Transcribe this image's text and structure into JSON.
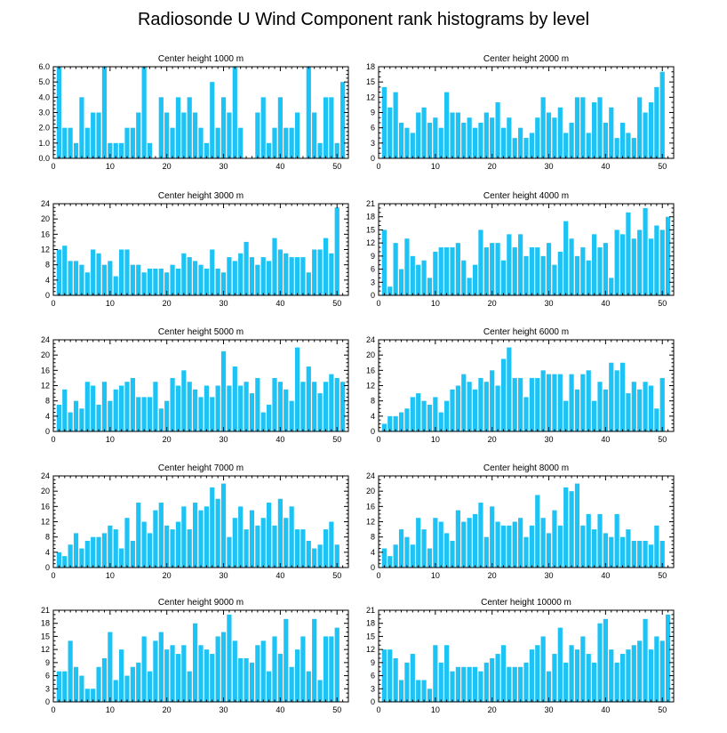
{
  "figure_title": "Radiosonde U Wind Component rank histograms by level",
  "colors": {
    "bar": "#1ec3f5",
    "frame": "#000000",
    "background": "#ffffff"
  },
  "chart_data": [
    {
      "type": "bar",
      "title": "Center height 1000 m",
      "xlim": [
        0,
        52
      ],
      "ylim": [
        0,
        6
      ],
      "xticks": [
        0,
        10,
        20,
        30,
        40,
        50
      ],
      "yticks": [
        0,
        1,
        2,
        3,
        4,
        5,
        6
      ],
      "ytick_labels": [
        "0.0",
        "1.0",
        "2.0",
        "3.0",
        "4.0",
        "5.0",
        "6.0"
      ],
      "values": [
        6,
        2,
        2,
        1,
        4,
        2,
        3,
        3,
        6,
        1,
        1,
        1,
        2,
        2,
        3,
        6,
        1,
        0,
        4,
        3,
        2,
        4,
        3,
        4,
        3,
        2,
        1,
        5,
        2,
        4,
        3,
        6,
        2,
        0,
        0,
        3,
        4,
        1,
        2,
        4,
        2,
        2,
        3,
        0,
        6,
        3,
        1,
        4,
        4,
        1,
        5
      ]
    },
    {
      "type": "bar",
      "title": "Center height 2000 m",
      "xlim": [
        0,
        52
      ],
      "ylim": [
        0,
        18
      ],
      "xticks": [
        0,
        10,
        20,
        30,
        40,
        50
      ],
      "yticks": [
        0,
        3,
        6,
        9,
        12,
        15,
        18
      ],
      "ytick_labels": [
        "0",
        "3",
        "6",
        "9",
        "12",
        "15",
        "18"
      ],
      "values": [
        14,
        10,
        13,
        7,
        6,
        5,
        9,
        10,
        7,
        8,
        6,
        13,
        9,
        9,
        7,
        8,
        6,
        7,
        9,
        8,
        11,
        6,
        8,
        4,
        6,
        4,
        5,
        8,
        12,
        9,
        8,
        10,
        5,
        7,
        12,
        12,
        5,
        11,
        12,
        7,
        10,
        4,
        7,
        5,
        4,
        12,
        9,
        11,
        14,
        17
      ]
    },
    {
      "type": "bar",
      "title": "Center height 3000 m",
      "xlim": [
        0,
        52
      ],
      "ylim": [
        0,
        24
      ],
      "xticks": [
        0,
        10,
        20,
        30,
        40,
        50
      ],
      "yticks": [
        0,
        4,
        8,
        12,
        16,
        20,
        24
      ],
      "ytick_labels": [
        "0",
        "4",
        "8",
        "12",
        "16",
        "20",
        "24"
      ],
      "values": [
        12,
        13,
        9,
        9,
        8,
        6,
        12,
        11,
        8,
        9,
        5,
        12,
        12,
        8,
        8,
        6,
        7,
        7,
        7,
        6,
        8,
        7,
        11,
        10,
        9,
        8,
        7,
        12,
        7,
        6,
        10,
        9,
        11,
        14,
        10,
        8,
        10,
        9,
        15,
        12,
        11,
        10,
        10,
        10,
        6,
        12,
        12,
        15,
        11,
        23
      ]
    },
    {
      "type": "bar",
      "title": "Center height 4000 m",
      "xlim": [
        0,
        52
      ],
      "ylim": [
        0,
        21
      ],
      "xticks": [
        0,
        10,
        20,
        30,
        40,
        50
      ],
      "yticks": [
        0,
        3,
        6,
        9,
        12,
        15,
        18,
        21
      ],
      "ytick_labels": [
        "0",
        "3",
        "6",
        "9",
        "12",
        "15",
        "18",
        "21"
      ],
      "values": [
        15,
        2,
        12,
        6,
        13,
        9,
        7,
        8,
        4,
        10,
        11,
        11,
        11,
        12,
        8,
        4,
        7,
        15,
        11,
        12,
        12,
        8,
        14,
        11,
        14,
        9,
        11,
        11,
        9,
        12,
        7,
        10,
        17,
        13,
        9,
        11,
        8,
        14,
        11,
        12,
        4,
        15,
        14,
        19,
        13,
        15,
        20,
        13,
        16,
        15,
        18
      ]
    },
    {
      "type": "bar",
      "title": "Center height 5000 m",
      "xlim": [
        0,
        52
      ],
      "ylim": [
        0,
        24
      ],
      "xticks": [
        0,
        10,
        20,
        30,
        40,
        50
      ],
      "yticks": [
        0,
        4,
        8,
        12,
        16,
        20,
        24
      ],
      "ytick_labels": [
        "0",
        "4",
        "8",
        "12",
        "16",
        "20",
        "24"
      ],
      "values": [
        7,
        11,
        5,
        8,
        6,
        13,
        12,
        7,
        13,
        8,
        11,
        12,
        13,
        14,
        9,
        9,
        9,
        13,
        6,
        8,
        14,
        12,
        16,
        13,
        11,
        9,
        12,
        9,
        12,
        21,
        12,
        17,
        12,
        13,
        10,
        14,
        5,
        7,
        14,
        13,
        11,
        8,
        22,
        13,
        17,
        13,
        10,
        13,
        15,
        14,
        13
      ]
    },
    {
      "type": "bar",
      "title": "Center height 6000 m",
      "xlim": [
        0,
        52
      ],
      "ylim": [
        0,
        24
      ],
      "xticks": [
        0,
        10,
        20,
        30,
        40,
        50
      ],
      "yticks": [
        0,
        4,
        8,
        12,
        16,
        20,
        24
      ],
      "ytick_labels": [
        "0",
        "4",
        "8",
        "12",
        "16",
        "20",
        "24"
      ],
      "values": [
        2,
        4,
        4,
        5,
        6,
        9,
        10,
        8,
        7,
        9,
        5,
        8,
        11,
        12,
        15,
        13,
        11,
        14,
        13,
        16,
        12,
        19,
        22,
        14,
        14,
        9,
        14,
        14,
        16,
        15,
        15,
        15,
        8,
        15,
        11,
        15,
        16,
        8,
        13,
        11,
        18,
        16,
        18,
        10,
        13,
        11,
        13,
        12,
        6,
        14
      ]
    },
    {
      "type": "bar",
      "title": "Center height 7000 m",
      "xlim": [
        0,
        52
      ],
      "ylim": [
        0,
        24
      ],
      "xticks": [
        0,
        10,
        20,
        30,
        40,
        50
      ],
      "yticks": [
        0,
        4,
        8,
        12,
        16,
        20,
        24
      ],
      "ytick_labels": [
        "0",
        "4",
        "8",
        "12",
        "16",
        "20",
        "24"
      ],
      "values": [
        4,
        3,
        6,
        9,
        5,
        7,
        8,
        8,
        9,
        11,
        10,
        5,
        13,
        7,
        17,
        12,
        9,
        15,
        17,
        11,
        10,
        12,
        16,
        10,
        17,
        15,
        16,
        21,
        18,
        22,
        8,
        13,
        16,
        10,
        15,
        11,
        13,
        17,
        11,
        18,
        13,
        16,
        10,
        10,
        7,
        5,
        6,
        10,
        12,
        6
      ]
    },
    {
      "type": "bar",
      "title": "Center height 8000 m",
      "xlim": [
        0,
        52
      ],
      "ylim": [
        0,
        24
      ],
      "xticks": [
        0,
        10,
        20,
        30,
        40,
        50
      ],
      "yticks": [
        0,
        4,
        8,
        12,
        16,
        20,
        24
      ],
      "ytick_labels": [
        "0",
        "4",
        "8",
        "12",
        "16",
        "20",
        "24"
      ],
      "values": [
        5,
        3,
        6,
        10,
        8,
        6,
        13,
        10,
        5,
        13,
        12,
        9,
        7,
        15,
        12,
        13,
        14,
        17,
        8,
        16,
        12,
        11,
        11,
        12,
        13,
        8,
        11,
        19,
        13,
        9,
        15,
        11,
        21,
        20,
        22,
        11,
        14,
        10,
        14,
        9,
        8,
        14,
        8,
        10,
        7,
        7,
        7,
        6,
        11,
        7
      ]
    },
    {
      "type": "bar",
      "title": "Center height 9000 m",
      "xlim": [
        0,
        52
      ],
      "ylim": [
        0,
        21
      ],
      "xticks": [
        0,
        10,
        20,
        30,
        40,
        50
      ],
      "yticks": [
        0,
        3,
        6,
        9,
        12,
        15,
        18,
        21
      ],
      "ytick_labels": [
        "0",
        "3",
        "6",
        "9",
        "12",
        "15",
        "18",
        "21"
      ],
      "values": [
        7,
        7,
        14,
        8,
        6,
        3,
        3,
        8,
        10,
        16,
        5,
        12,
        6,
        8,
        9,
        15,
        7,
        14,
        16,
        12,
        13,
        11,
        13,
        7,
        18,
        13,
        12,
        11,
        15,
        16,
        20,
        14,
        10,
        10,
        9,
        13,
        14,
        7,
        15,
        11,
        19,
        8,
        12,
        15,
        7,
        19,
        5,
        15,
        15,
        17
      ]
    },
    {
      "type": "bar",
      "title": "Center height 10000 m",
      "xlim": [
        0,
        52
      ],
      "ylim": [
        0,
        21
      ],
      "xticks": [
        0,
        10,
        20,
        30,
        40,
        50
      ],
      "yticks": [
        0,
        3,
        6,
        9,
        12,
        15,
        18,
        21
      ],
      "ytick_labels": [
        "0",
        "3",
        "6",
        "9",
        "12",
        "15",
        "18",
        "21"
      ],
      "values": [
        12,
        12,
        10,
        5,
        9,
        11,
        5,
        5,
        3,
        13,
        9,
        13,
        7,
        8,
        8,
        8,
        8,
        7,
        9,
        10,
        11,
        13,
        8,
        8,
        8,
        9,
        12,
        13,
        15,
        7,
        11,
        17,
        9,
        13,
        12,
        15,
        11,
        9,
        18,
        19,
        12,
        9,
        11,
        12,
        13,
        14,
        19,
        12,
        15,
        14,
        20
      ]
    }
  ]
}
